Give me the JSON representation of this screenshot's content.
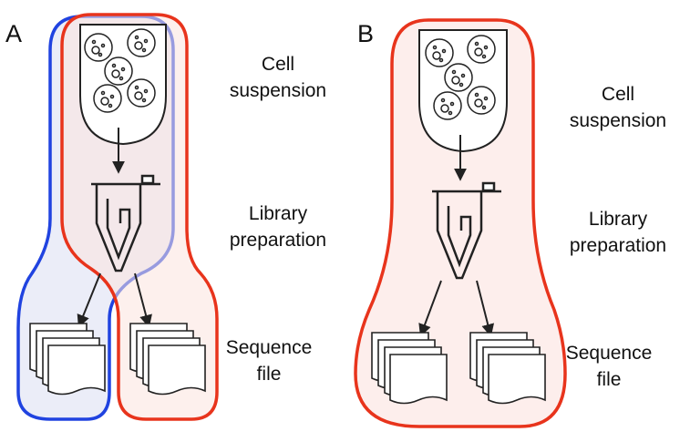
{
  "panels": [
    {
      "letter": "A",
      "labels": {
        "cell_suspension_line1": "Cell",
        "cell_suspension_line2": "suspension",
        "library_preparation_line1": "Library",
        "library_preparation_line2": "preparation",
        "sequence_file_line1": "Sequence",
        "sequence_file_line2": "file"
      }
    },
    {
      "letter": "B",
      "labels": {
        "cell_suspension_line1": "Cell",
        "cell_suspension_line2": "suspension",
        "library_preparation_line1": "Library",
        "library_preparation_line2": "preparation",
        "sequence_file_line1": "Sequence",
        "sequence_file_line2": "file"
      }
    }
  ],
  "colors": {
    "blue_outline": "#2043e0",
    "red_outline": "#e8341c",
    "blue_fill": "#e8eaf7",
    "red_fill": "#fbe3df",
    "overlap_fill": "#efe7ef",
    "ink": "#222222"
  }
}
